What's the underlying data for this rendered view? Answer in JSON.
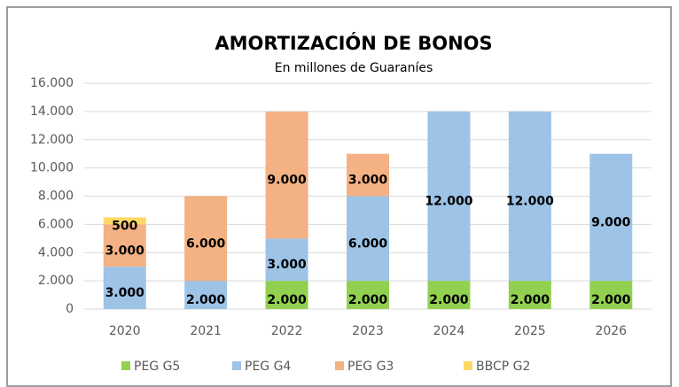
{
  "chart_data": {
    "type": "stacked-bar",
    "title": "AMORTIZACIÓN DE BONOS",
    "subtitle": "En millones de Guaraníes",
    "categories": [
      "2020",
      "2021",
      "2022",
      "2023",
      "2024",
      "2025",
      "2026"
    ],
    "series": [
      {
        "name": "PEG G5",
        "color": "#92d050",
        "values": [
          null,
          null,
          2000,
          2000,
          2000,
          2000,
          2000
        ],
        "value_labels": [
          null,
          null,
          "2.000",
          "2.000",
          "2.000",
          "2.000",
          "2.000"
        ]
      },
      {
        "name": "PEG G4",
        "color": "#9dc3e6",
        "values": [
          3000,
          2000,
          3000,
          6000,
          12000,
          12000,
          9000
        ],
        "value_labels": [
          "3.000",
          "2.000",
          "3.000",
          "6.000",
          "12.000",
          "12.000",
          "9.000"
        ]
      },
      {
        "name": "PEG G3",
        "color": "#f4b183",
        "values": [
          3000,
          6000,
          9000,
          3000,
          null,
          null,
          null
        ],
        "value_labels": [
          "3.000",
          "6.000",
          "9.000",
          "3.000",
          null,
          null,
          null
        ]
      },
      {
        "name": "BBCP G2",
        "color": "#ffd966",
        "values": [
          500,
          null,
          null,
          null,
          null,
          null,
          null
        ],
        "value_labels": [
          "500",
          null,
          null,
          null,
          null,
          null,
          null
        ]
      }
    ],
    "ylim": [
      0,
      16000
    ],
    "yticks": [
      {
        "value": 0,
        "label": "0"
      },
      {
        "value": 2000,
        "label": "2.000"
      },
      {
        "value": 4000,
        "label": "4.000"
      },
      {
        "value": 6000,
        "label": "6.000"
      },
      {
        "value": 8000,
        "label": "8.000"
      },
      {
        "value": 10000,
        "label": "10.000"
      },
      {
        "value": 12000,
        "label": "12.000"
      },
      {
        "value": 14000,
        "label": "14.000"
      },
      {
        "value": 16000,
        "label": "16.000"
      }
    ],
    "grid": true,
    "legend": "bottom"
  }
}
